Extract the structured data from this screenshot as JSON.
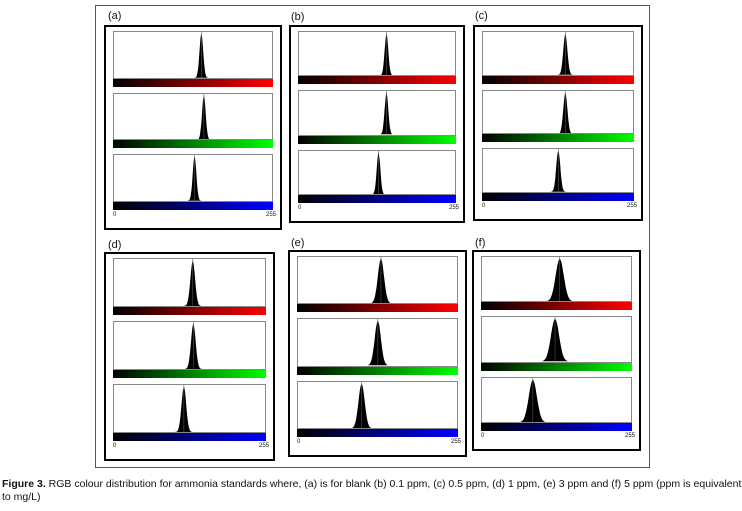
{
  "figure": {
    "axis_min_label": "0",
    "axis_max_label": "255",
    "channel_colors": {
      "red": "#ff0000",
      "green": "#00ff00",
      "blue": "#0000ff"
    },
    "panels": [
      {
        "label": "(a)",
        "peaks": {
          "red": 141,
          "green": 145,
          "blue": 130
        },
        "spread": 3
      },
      {
        "label": "(b)",
        "peaks": {
          "red": 143,
          "green": 143,
          "blue": 130
        },
        "spread": 3
      },
      {
        "label": "(c)",
        "peaks": {
          "red": 140,
          "green": 140,
          "blue": 128
        },
        "spread": 3.5
      },
      {
        "label": "(d)",
        "peaks": {
          "red": 133,
          "green": 134,
          "blue": 118
        },
        "spread": 4
      },
      {
        "label": "(e)",
        "peaks": {
          "red": 133,
          "green": 128,
          "blue": 102
        },
        "spread": 5
      },
      {
        "label": "(f)",
        "peaks": {
          "red": 133,
          "green": 125,
          "blue": 87
        },
        "spread": 7
      }
    ]
  },
  "caption": {
    "bold": "Figure 3.",
    "text": " RGB colour distribution for ammonia standards where, (a) is for blank (b) 0.1 ppm, (c) 0.5 ppm, (d) 1 ppm, (e) 3 ppm and (f) 5 ppm (ppm is equivalent to mg/L)"
  }
}
